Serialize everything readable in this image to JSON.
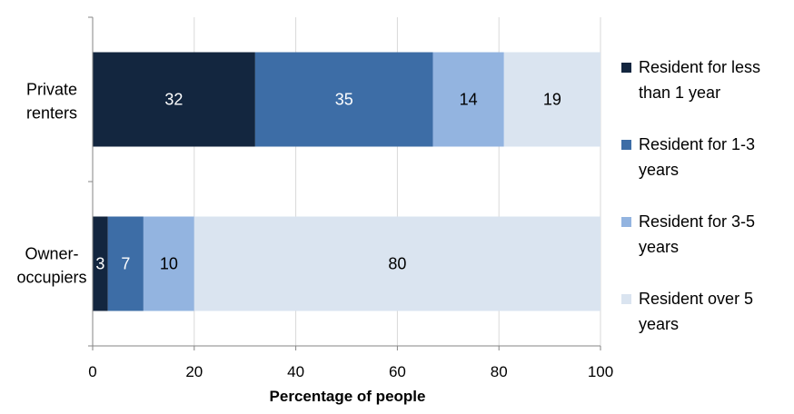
{
  "chart_data": {
    "type": "bar",
    "orientation": "horizontal",
    "stacked": true,
    "categories": [
      "Private renters",
      "Owner-occupiers"
    ],
    "category_label_lines": [
      [
        "Private",
        "renters"
      ],
      [
        "Owner-",
        "occupiers"
      ]
    ],
    "series": [
      {
        "name": "Resident for less than 1 year",
        "name_lines": [
          "Resident for less",
          "than 1 year"
        ],
        "values": [
          32,
          3
        ],
        "color": "#13263f",
        "label_color": "#ffffff"
      },
      {
        "name": "Resident for 1-3 years",
        "name_lines": [
          "Resident for 1-3",
          "years"
        ],
        "values": [
          35,
          7
        ],
        "color": "#3d6da6",
        "label_color": "#ffffff"
      },
      {
        "name": "Resident for 3-5 years",
        "name_lines": [
          "Resident for 3-5",
          "years"
        ],
        "values": [
          14,
          10
        ],
        "color": "#93b4e0",
        "label_color": "#000000"
      },
      {
        "name": "Resident over 5 years",
        "name_lines": [
          "Resident over 5",
          "years"
        ],
        "values": [
          19,
          80
        ],
        "color": "#dae4f0",
        "label_color": "#000000"
      }
    ],
    "xlabel": "Percentage of people",
    "ylabel": "",
    "xlim": [
      0,
      100
    ],
    "xticks": [
      0,
      20,
      40,
      60,
      80,
      100
    ],
    "grid": true,
    "gridline_color": "#d9d9d9",
    "legend_position": "right"
  }
}
